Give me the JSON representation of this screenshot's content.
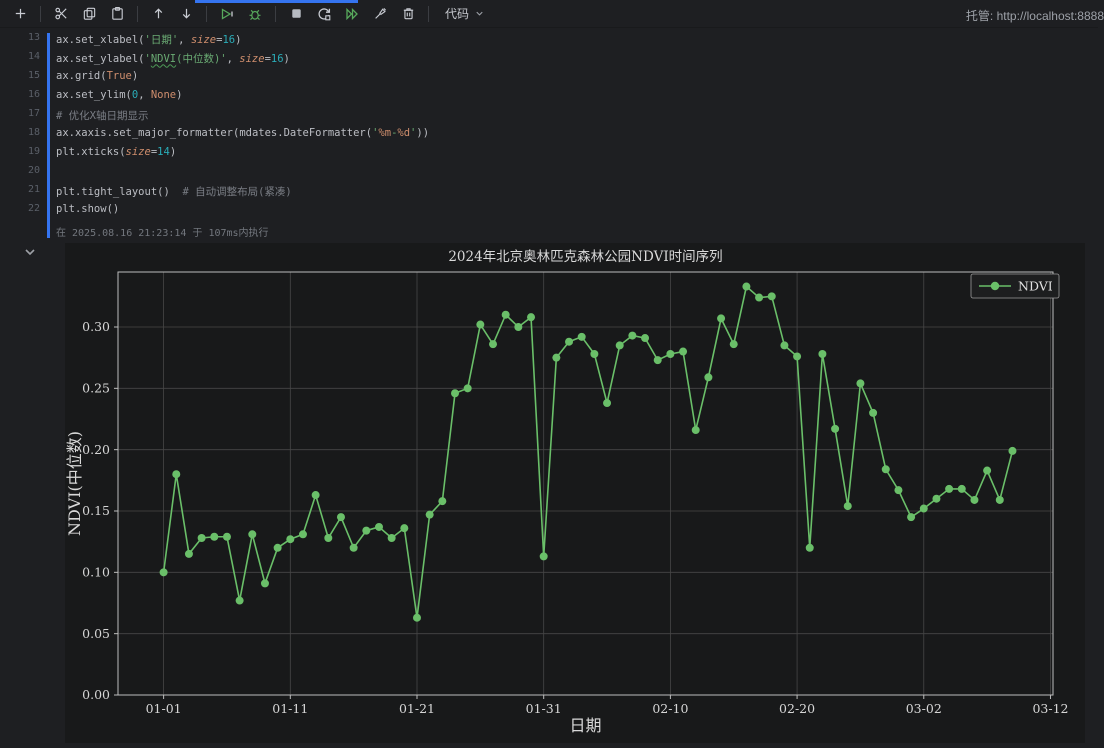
{
  "toolbar": {
    "cell_type_label": "代码",
    "host_label": "托管: http://localhost:8888",
    "items": [
      "add-cell-icon",
      "cut-icon",
      "copy-icon",
      "paste-icon",
      "move-up-icon",
      "move-down-icon",
      "run-cell-icon",
      "debug-cell-icon",
      "stop-icon",
      "restart-kernel-icon",
      "run-all-icon",
      "clear-outputs-icon",
      "delete-cell-icon",
      "cell-type-dropdown"
    ],
    "colors": {
      "icon_gray": "#c9ccd3",
      "icon_green": "#57a85c",
      "accent_blue": "#3574f0"
    }
  },
  "editor": {
    "status": "在 2025.08.16 21:23:14 于 107ms内执行",
    "lines": [
      {
        "num": "13",
        "tokens": [
          [
            "ax.set_xlabel(",
            "code"
          ],
          [
            "'日期'",
            "str"
          ],
          [
            ", ",
            "code"
          ],
          [
            "size",
            "param"
          ],
          [
            "=",
            "code"
          ],
          [
            "16",
            "num"
          ],
          [
            ")",
            "code"
          ]
        ]
      },
      {
        "num": "14",
        "tokens": [
          [
            "ax.set_ylabel(",
            "code"
          ],
          [
            "'",
            "str"
          ],
          [
            "NDVI",
            "strU"
          ],
          [
            "(中位数)'",
            "str"
          ],
          [
            ", ",
            "code"
          ],
          [
            "size",
            "param"
          ],
          [
            "=",
            "code"
          ],
          [
            "16",
            "num"
          ],
          [
            ")",
            "code"
          ]
        ]
      },
      {
        "num": "15",
        "tokens": [
          [
            "ax.grid(",
            "code"
          ],
          [
            "True",
            "kw"
          ],
          [
            ")",
            "code"
          ]
        ]
      },
      {
        "num": "16",
        "tokens": [
          [
            "ax.set_ylim(",
            "code"
          ],
          [
            "0",
            "num"
          ],
          [
            ", ",
            "code"
          ],
          [
            "None",
            "kw"
          ],
          [
            ")",
            "code"
          ]
        ]
      },
      {
        "num": "17",
        "tokens": [
          [
            "# 优化X轴日期显示",
            "comment"
          ]
        ]
      },
      {
        "num": "18",
        "tokens": [
          [
            "ax.xaxis.set_major_formatter(mdates.DateFormatter(",
            "code"
          ],
          [
            "'",
            "str"
          ],
          [
            "%m",
            "fmt"
          ],
          [
            "-",
            "str"
          ],
          [
            "%d",
            "fmt"
          ],
          [
            "'",
            "str"
          ],
          [
            "))",
            "code"
          ]
        ]
      },
      {
        "num": "19",
        "tokens": [
          [
            "plt.xticks(",
            "code"
          ],
          [
            "size",
            "param"
          ],
          [
            "=",
            "code"
          ],
          [
            "14",
            "num"
          ],
          [
            ")",
            "code"
          ]
        ]
      },
      {
        "num": "20",
        "tokens": []
      },
      {
        "num": "21",
        "tokens": [
          [
            "plt.tight_layout()  ",
            "code"
          ],
          [
            "# 自动调整布局(紧凑)",
            "comment"
          ]
        ]
      },
      {
        "num": "22",
        "tokens": [
          [
            "plt.show()",
            "code"
          ]
        ]
      }
    ]
  },
  "chart_data": {
    "type": "line",
    "title": "2024年北京奥林匹克森林公园NDVI时间序列",
    "xlabel": "日期",
    "ylabel": "NDVI(中位数)",
    "legend": [
      "NDVI"
    ],
    "legend_position": "upper right",
    "grid": true,
    "ylim": [
      0,
      0.345
    ],
    "y_ticks": [
      "0.00",
      "0.05",
      "0.10",
      "0.15",
      "0.20",
      "0.25",
      "0.30"
    ],
    "x_ticks": [
      "01-01",
      "01-11",
      "01-21",
      "01-31",
      "02-10",
      "02-20",
      "03-02",
      "03-12"
    ],
    "line_color": "#6abf69",
    "series": [
      {
        "name": "NDVI",
        "x": [
          "01-01",
          "01-02",
          "01-03",
          "01-04",
          "01-05",
          "01-06",
          "01-07",
          "01-08",
          "01-09",
          "01-10",
          "01-11",
          "01-12",
          "01-13",
          "01-14",
          "01-15",
          "01-16",
          "01-17",
          "01-18",
          "01-19",
          "01-20",
          "01-21",
          "01-22",
          "01-23",
          "01-24",
          "01-25",
          "01-26",
          "01-27",
          "01-28",
          "01-29",
          "01-30",
          "01-31",
          "02-01",
          "02-02",
          "02-03",
          "02-04",
          "02-05",
          "02-06",
          "02-07",
          "02-08",
          "02-09",
          "02-10",
          "02-11",
          "02-12",
          "02-13",
          "02-14",
          "02-15",
          "02-16",
          "02-17",
          "02-18",
          "02-19",
          "02-20",
          "02-21",
          "02-22",
          "02-23",
          "02-24",
          "02-25",
          "02-26",
          "02-27",
          "02-28",
          "03-01",
          "03-02",
          "03-03",
          "03-04",
          "03-05",
          "03-06",
          "03-07",
          "03-08",
          "03-09"
        ],
        "values": [
          0.1,
          0.18,
          0.115,
          0.128,
          0.129,
          0.129,
          0.077,
          0.131,
          0.091,
          0.12,
          0.127,
          0.131,
          0.163,
          0.128,
          0.145,
          0.12,
          0.134,
          0.137,
          0.128,
          0.136,
          0.063,
          0.147,
          0.158,
          0.246,
          0.25,
          0.302,
          0.286,
          0.31,
          0.3,
          0.308,
          0.113,
          0.275,
          0.288,
          0.292,
          0.278,
          0.238,
          0.285,
          0.293,
          0.291,
          0.273,
          0.278,
          0.28,
          0.216,
          0.259,
          0.307,
          0.286,
          0.333,
          0.324,
          0.325,
          0.285,
          0.276,
          0.12,
          0.278,
          0.217,
          0.154,
          0.254,
          0.23,
          0.184,
          0.167,
          0.145,
          0.152,
          0.16,
          0.168,
          0.168,
          0.159,
          0.183,
          0.159,
          0.199
        ]
      }
    ]
  }
}
